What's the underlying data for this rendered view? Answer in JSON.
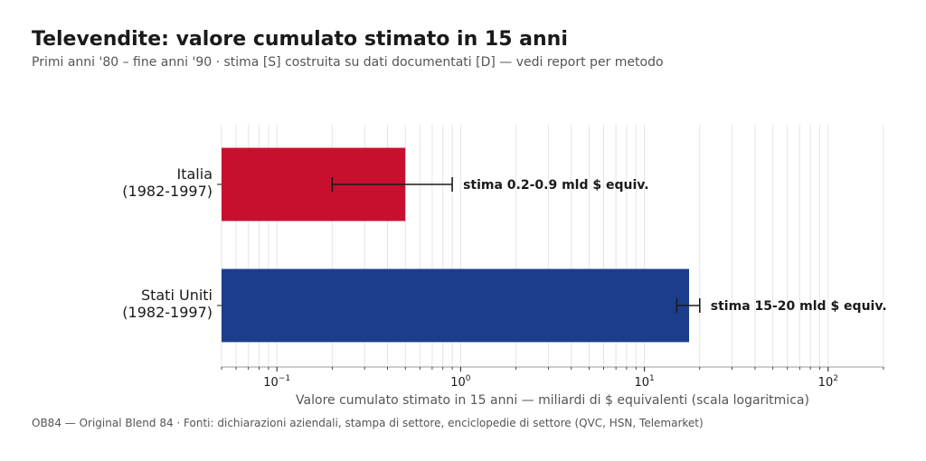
{
  "header": {
    "title": "Televendite: valore cumulato stimato in 15 anni",
    "subtitle": "Primi anni '80 – fine anni '90 · stima [S] costruita su dati documentati [D] — vedi report per metodo"
  },
  "footer": {
    "source": "OB84 — Original Blend 84 · Fonti: dichiarazioni aziendali, stampa di settore, enciclopedie di settore (QVC, HSN, Telemarket)"
  },
  "chart_data": {
    "type": "bar",
    "orientation": "horizontal",
    "xscale": "log",
    "xlim": [
      0.05,
      200
    ],
    "xlabel": "Valore cumulato stimato in 15 anni — miliardi di $ equivalenti (scala logaritmica)",
    "ylabel": "",
    "grid": true,
    "x_ticks": [
      {
        "base": "10",
        "exp": "−1",
        "value": 0.1
      },
      {
        "base": "10",
        "exp": "0",
        "value": 1
      },
      {
        "base": "10",
        "exp": "1",
        "value": 10
      },
      {
        "base": "10",
        "exp": "2",
        "value": 100
      }
    ],
    "categories": [
      {
        "lines": [
          "Italia",
          "(1982-1997)"
        ],
        "value": 0.5,
        "err_low": 0.2,
        "err_high": 0.9,
        "color": "#c8102e",
        "annotation": "stima 0.2-0.9 mld $ equiv."
      },
      {
        "lines": [
          "Stati Uniti",
          "(1982-1997)"
        ],
        "value": 17.5,
        "err_low": 15,
        "err_high": 20,
        "color": "#1b3d8c",
        "annotation": "stima 15-20 mld $ equiv."
      }
    ]
  }
}
